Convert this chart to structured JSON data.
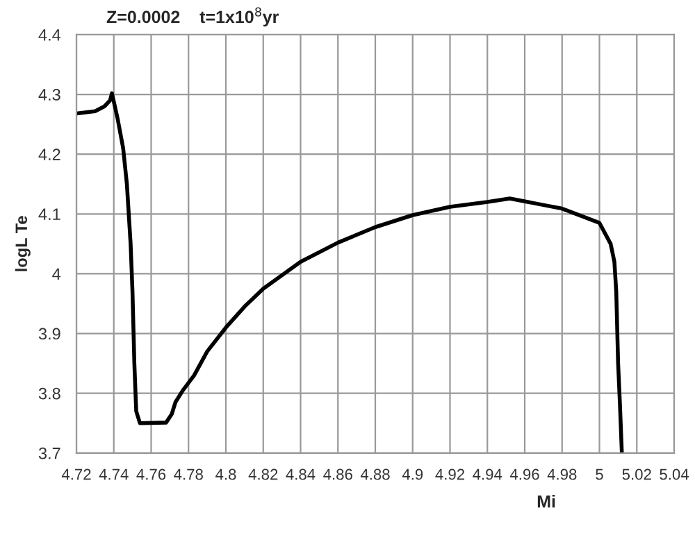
{
  "chart_data": {
    "type": "line",
    "title": "Z=0.0002    t=1x10$^{8}$yr",
    "xlabel": "Mi",
    "ylabel": "logL Te",
    "series": [
      {
        "color": "#000000",
        "x": [
          4.72,
          4.73,
          4.735,
          4.738,
          4.739,
          4.742,
          4.745,
          4.747,
          4.749,
          4.75,
          4.751,
          4.752,
          4.754,
          4.768,
          4.771,
          4.773,
          4.777,
          4.783,
          4.79,
          4.8,
          4.81,
          4.82,
          4.84,
          4.86,
          4.88,
          4.9,
          4.92,
          4.94,
          4.952,
          4.97,
          4.98,
          5.0,
          5.006,
          5.008,
          5.009,
          5.01,
          5.011,
          5.012
        ],
        "values": [
          4.268,
          4.272,
          4.28,
          4.29,
          4.302,
          4.26,
          4.21,
          4.15,
          4.05,
          3.97,
          3.85,
          3.77,
          3.75,
          3.751,
          3.765,
          3.785,
          3.805,
          3.83,
          3.87,
          3.91,
          3.945,
          3.975,
          4.02,
          4.052,
          4.078,
          4.098,
          4.112,
          4.12,
          4.126,
          4.115,
          4.109,
          4.085,
          4.05,
          4.02,
          3.97,
          3.85,
          3.78,
          3.7
        ]
      }
    ],
    "xlim": [
      4.72,
      5.04
    ],
    "ylim": [
      3.7,
      4.4
    ],
    "xticks": [
      4.72,
      4.74,
      4.76,
      4.78,
      {
        "value": 4.8,
        "label": "4.8"
      },
      4.82,
      4.84,
      4.86,
      4.88,
      {
        "value": 4.9,
        "label": "4.9"
      },
      4.92,
      4.94,
      4.96,
      4.98,
      {
        "value": 5.0,
        "label": "5"
      },
      5.02,
      5.04
    ],
    "yticks": [
      {
        "value": 3.7,
        "label": "3.7"
      },
      {
        "value": 3.8,
        "label": "3.8"
      },
      {
        "value": 3.9,
        "label": "3.9"
      },
      {
        "value": 4.0,
        "label": "4"
      },
      {
        "value": 4.1,
        "label": "4.1"
      },
      {
        "value": 4.2,
        "label": "4.2"
      },
      {
        "value": 4.3,
        "label": "4.3"
      },
      {
        "value": 4.4,
        "label": "4.4"
      }
    ],
    "grid": true,
    "marker": "none",
    "line_style": "solid",
    "legend": false
  }
}
